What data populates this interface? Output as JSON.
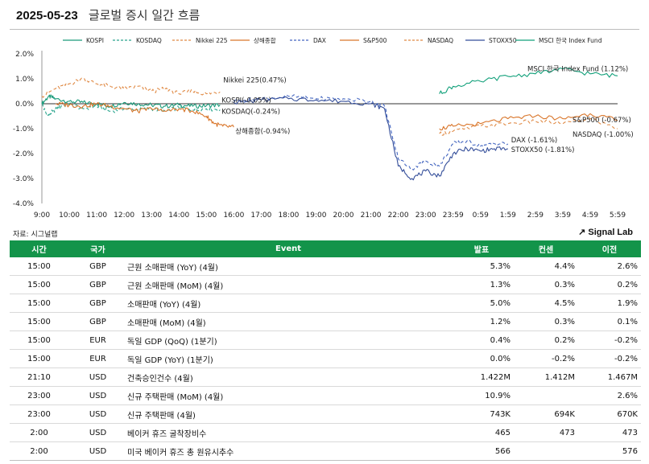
{
  "header": {
    "date": "2025-05-23",
    "title": "글로벌 증시 일간 흐름"
  },
  "source_label": "자료: 시그널랩",
  "brand": "Signal Lab",
  "chart_data": {
    "type": "line",
    "x_ticks": [
      "9:00",
      "10:00",
      "11:00",
      "12:00",
      "13:00",
      "14:00",
      "15:00",
      "16:00",
      "17:00",
      "18:00",
      "19:00",
      "20:00",
      "21:00",
      "22:00",
      "23:00",
      "23:59",
      "0:59",
      "1:59",
      "2:59",
      "3:59",
      "4:59",
      "5:59"
    ],
    "y_ticks": [
      "2.0%",
      "1.0%",
      "0.0%",
      "-1.0%",
      "-2.0%",
      "-3.0%",
      "-4.0%"
    ],
    "ylim": [
      -4,
      2
    ],
    "legend_position": "top",
    "series": [
      {
        "name": "KOSPI",
        "color": "#1a9a7a",
        "dash": "solid",
        "x": [
          0,
          0.25,
          0.5,
          1,
          1.5,
          2,
          2.5,
          3,
          3.5,
          4,
          4.5,
          5,
          5.5,
          6,
          6.5
        ],
        "y": [
          0.0,
          0.3,
          0.2,
          0.1,
          0.05,
          0.0,
          -0.1,
          0.05,
          0.0,
          -0.05,
          -0.1,
          -0.05,
          -0.1,
          -0.08,
          -0.05
        ],
        "end_label": "KOSPI(-0.05%)"
      },
      {
        "name": "KOSDAQ",
        "color": "#2aa58e",
        "dash": "4,3",
        "x": [
          0,
          0.2,
          0.4,
          0.7,
          1,
          1.5,
          2,
          2.5,
          3,
          3.5,
          4,
          4.5,
          5,
          5.5,
          6,
          6.5
        ],
        "y": [
          0.0,
          -0.5,
          -0.3,
          -0.1,
          0.0,
          -0.2,
          -0.1,
          -0.3,
          -0.2,
          -0.25,
          -0.2,
          -0.3,
          -0.15,
          -0.25,
          -0.2,
          -0.24
        ],
        "end_label": "KOSDAQ(-0.24%)"
      },
      {
        "name": "Nikkei 225",
        "color": "#e08a45",
        "dash": "4,3",
        "x": [
          0,
          0.5,
          1,
          1.5,
          2,
          2.5,
          3,
          3.5,
          4,
          4.5,
          5,
          5.5,
          6,
          6.5
        ],
        "y": [
          0.3,
          0.6,
          0.8,
          1.0,
          0.8,
          0.7,
          0.6,
          0.7,
          0.5,
          0.6,
          0.4,
          0.5,
          0.4,
          0.47
        ],
        "end_label": "Nikkei 225(0.47%)"
      },
      {
        "name": "상해종합",
        "color": "#d9762b",
        "dash": "solid",
        "x": [
          0.5,
          1,
          1.5,
          2,
          2.5,
          3,
          3.5,
          4,
          4.5,
          5,
          5.5,
          6,
          6.3,
          6.6,
          7
        ],
        "y": [
          0.0,
          -0.05,
          -0.1,
          0.0,
          -0.1,
          -0.2,
          -0.3,
          -0.2,
          -0.3,
          -0.2,
          -0.3,
          -0.5,
          -0.8,
          -0.9,
          -0.94
        ],
        "end_label": "상해종합(-0.94%)"
      },
      {
        "name": "DAX",
        "color": "#4466c0",
        "dash": "4,3",
        "x": [
          7,
          8,
          9,
          10,
          11,
          12,
          12.5,
          13,
          13.5,
          14,
          14.5,
          15,
          15.5,
          16,
          16.5,
          17
        ],
        "y": [
          0.1,
          0.2,
          0.3,
          0.2,
          0.2,
          0.1,
          -0.1,
          -2.2,
          -2.6,
          -2.3,
          -2.5,
          -1.6,
          -1.5,
          -1.7,
          -1.6,
          -1.61
        ],
        "end_label": "DAX (-1.61%)"
      },
      {
        "name": "S&P500",
        "color": "#d9762b",
        "dash": "solid",
        "x": [
          14.5,
          15,
          16,
          17,
          18,
          19,
          20,
          21
        ],
        "y": [
          -1.0,
          -0.9,
          -0.8,
          -0.6,
          -0.5,
          -0.6,
          -0.4,
          -0.67
        ],
        "end_label": "S&P500 (-0.67%)"
      },
      {
        "name": "NASDAQ",
        "color": "#e08a45",
        "dash": "4,3",
        "x": [
          14.5,
          15,
          16,
          17,
          18,
          19,
          20,
          21
        ],
        "y": [
          -1.2,
          -1.1,
          -0.9,
          -0.8,
          -0.7,
          -0.8,
          -0.6,
          -1.0
        ],
        "end_label": "NASDAQ (-1.00%)"
      },
      {
        "name": "STOXX50",
        "color": "#344e9a",
        "dash": "solid",
        "x": [
          7,
          8,
          9,
          10,
          11,
          12,
          12.5,
          13,
          13.5,
          14,
          14.5,
          15,
          15.5,
          16,
          16.5,
          17
        ],
        "y": [
          0.05,
          0.15,
          0.2,
          0.15,
          0.1,
          0.0,
          -0.2,
          -2.5,
          -3.0,
          -2.7,
          -2.9,
          -2.0,
          -1.8,
          -1.9,
          -1.8,
          -1.81
        ],
        "end_label": "STOXX50 (-1.81%)"
      },
      {
        "name": "MSCI 한국 Index Fund",
        "color": "#11a07a",
        "dash": "solid",
        "x": [
          14.5,
          15,
          16,
          17,
          18,
          19,
          20,
          21
        ],
        "y": [
          0.4,
          0.7,
          0.9,
          1.1,
          1.2,
          1.4,
          1.2,
          1.12
        ],
        "end_label": "MSCI 한국 Index Fund (1.12%)"
      }
    ]
  },
  "table": {
    "headers": [
      "시간",
      "국가",
      "Event",
      "발표",
      "컨센",
      "이전"
    ],
    "rows": [
      [
        "15:00",
        "GBP",
        "근원 소매판매 (YoY) (4월)",
        "5.3%",
        "4.4%",
        "2.6%"
      ],
      [
        "15:00",
        "GBP",
        "근원 소매판매 (MoM) (4월)",
        "1.3%",
        "0.3%",
        "0.2%"
      ],
      [
        "15:00",
        "GBP",
        "소매판매 (YoY) (4월)",
        "5.0%",
        "4.5%",
        "1.9%"
      ],
      [
        "15:00",
        "GBP",
        "소매판매 (MoM) (4월)",
        "1.2%",
        "0.3%",
        "0.1%"
      ],
      [
        "15:00",
        "EUR",
        "독일 GDP (QoQ) (1분기)",
        "0.4%",
        "0.2%",
        "-0.2%"
      ],
      [
        "15:00",
        "EUR",
        "독일 GDP (YoY) (1분기)",
        "0.0%",
        "-0.2%",
        "-0.2%"
      ],
      [
        "21:10",
        "USD",
        "건축승인건수 (4월)",
        "1.422M",
        "1.412M",
        "1.467M"
      ],
      [
        "23:00",
        "USD",
        "신규 주택판매 (MoM) (4월)",
        "10.9%",
        "",
        "2.6%"
      ],
      [
        "23:00",
        "USD",
        "신규 주택판매 (4월)",
        "743K",
        "694K",
        "670K"
      ],
      [
        "2:00",
        "USD",
        "베이커 휴즈 굴착장비수",
        "465",
        "473",
        "473"
      ],
      [
        "2:00",
        "USD",
        "미국 베이커 휴즈 총 원유시추수",
        "566",
        "",
        "576"
      ]
    ]
  }
}
